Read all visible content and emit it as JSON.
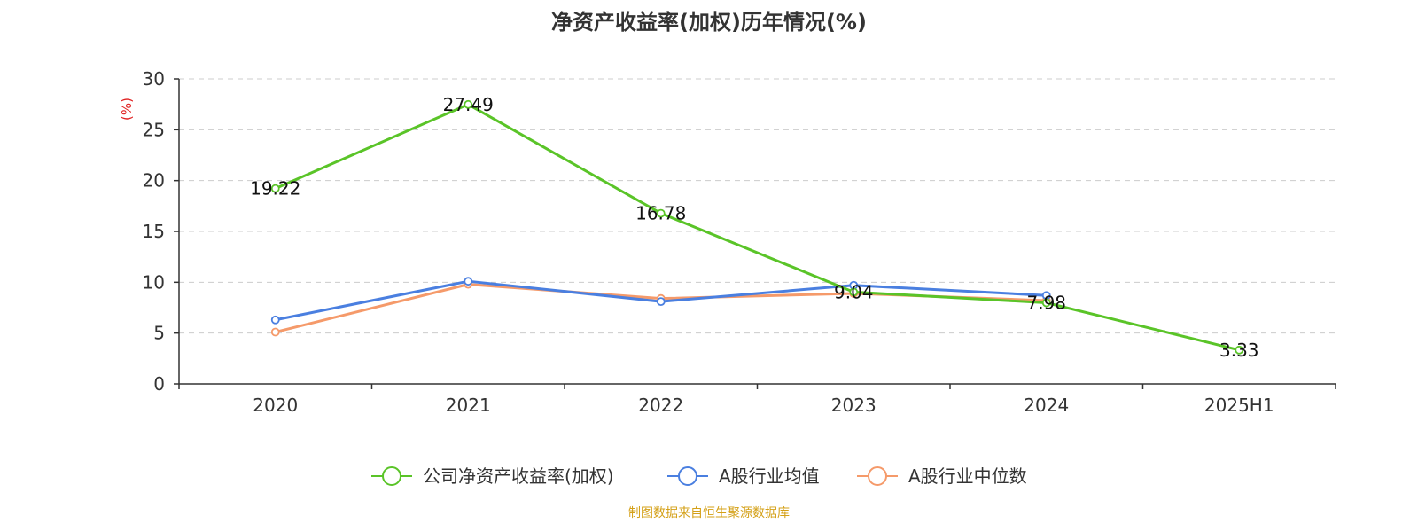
{
  "chart_data": {
    "type": "line",
    "title": "净资产收益率(加权)历年情况(%)",
    "xlabel": "",
    "ylabel": "(%)",
    "categories": [
      "2020",
      "2021",
      "2022",
      "2023",
      "2024",
      "2025H1"
    ],
    "ylim": [
      0,
      30
    ],
    "yticks": [
      0,
      5,
      10,
      15,
      20,
      25,
      30
    ],
    "grid": true,
    "legend_position": "bottom",
    "series": [
      {
        "name": "公司净资产收益率(加权)",
        "color": "#5ac428",
        "values": [
          19.22,
          27.49,
          16.78,
          9.04,
          7.98,
          3.33
        ],
        "labels": [
          "19.22",
          "27.49",
          "16.78",
          "9.04",
          "7.98",
          "3.33"
        ]
      },
      {
        "name": "A股行业均值",
        "color": "#4a7fe0",
        "values": [
          6.3,
          10.1,
          8.1,
          9.7,
          8.7,
          null
        ]
      },
      {
        "name": "A股行业中位数",
        "color": "#f59a6a",
        "values": [
          5.1,
          9.8,
          8.4,
          8.9,
          8.2,
          null
        ]
      }
    ]
  },
  "source": {
    "text": "制图数据来自恒生聚源数据库",
    "color": "#d4a017"
  },
  "ylabel_color": "#e02020"
}
